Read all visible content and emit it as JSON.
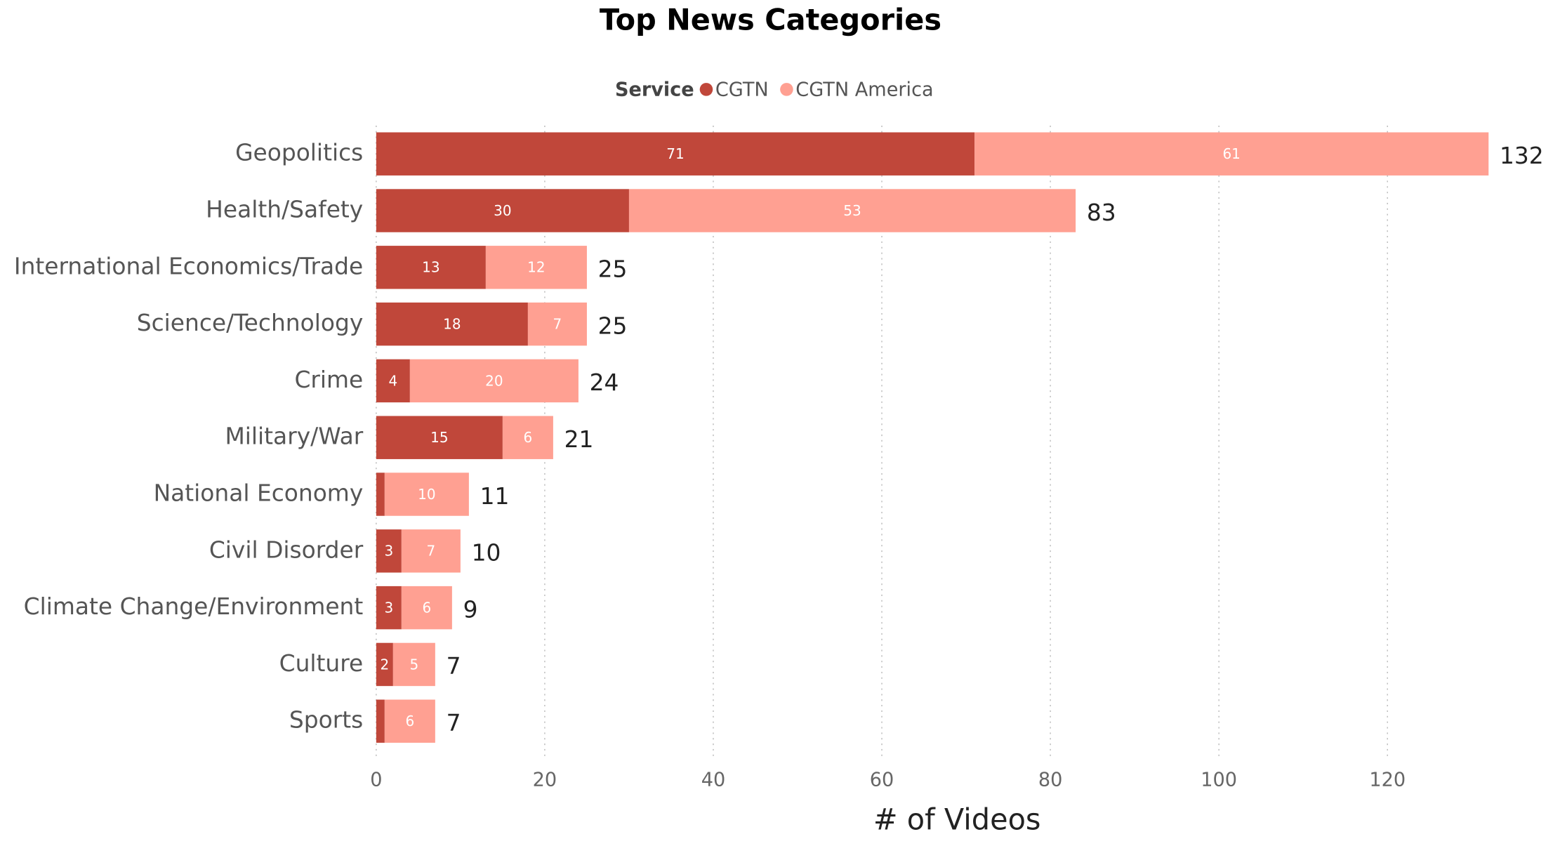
{
  "chart_data": {
    "type": "stacked-bar-horizontal",
    "title": "Top News Categories",
    "legend_title": "Service",
    "x_label": "# of Videos",
    "categories": [
      "Geopolitics",
      "Health/Safety",
      "International Economics/Trade",
      "Science/Technology",
      "Crime",
      "Military/War",
      "National Economy",
      "Civil Disorder",
      "Climate Change/Environment",
      "Culture",
      "Sports"
    ],
    "series": [
      {
        "name": "CGTN",
        "color": "#c0473a",
        "values": [
          71,
          30,
          13,
          18,
          4,
          15,
          1,
          3,
          3,
          2,
          1
        ]
      },
      {
        "name": "CGTN America",
        "color": "#ffa092",
        "values": [
          61,
          53,
          12,
          7,
          20,
          6,
          10,
          7,
          6,
          5,
          6
        ]
      }
    ],
    "totals": [
      132,
      83,
      25,
      25,
      24,
      21,
      11,
      10,
      9,
      7,
      7
    ],
    "xlim": [
      0,
      135
    ],
    "xticks": [
      0,
      20,
      40,
      60,
      80,
      100,
      120
    ],
    "grid": true
  }
}
